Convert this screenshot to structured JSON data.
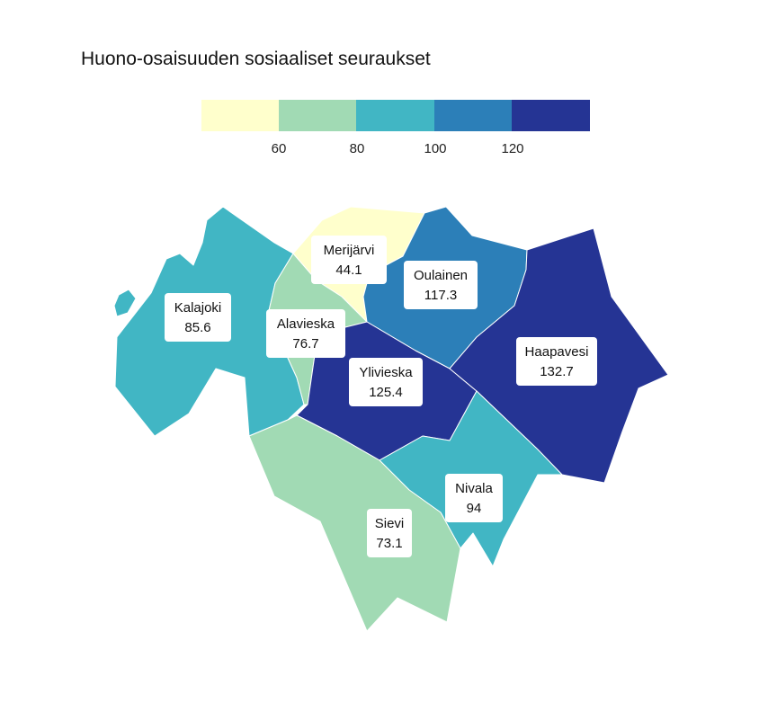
{
  "title": "Huono-osaisuuden sosiaaliset seuraukset",
  "legend": {
    "bins": [
      {
        "color": "#ffffcc"
      },
      {
        "color": "#a1dab4"
      },
      {
        "color": "#41b6c4"
      },
      {
        "color": "#2c7fb8"
      },
      {
        "color": "#253494"
      }
    ],
    "ticks": [
      "60",
      "80",
      "100",
      "120"
    ]
  },
  "regions": [
    {
      "name": "Merijärvi",
      "value": "44.1",
      "color": "#ffffcc"
    },
    {
      "name": "Oulainen",
      "value": "117.3",
      "color": "#2c7fb8"
    },
    {
      "name": "Kalajoki",
      "value": "85.6",
      "color": "#41b6c4"
    },
    {
      "name": "Alavieska",
      "value": "76.7",
      "color": "#a1dab4"
    },
    {
      "name": "Ylivieska",
      "value": "125.4",
      "color": "#253494"
    },
    {
      "name": "Haapavesi",
      "value": "132.7",
      "color": "#253494"
    },
    {
      "name": "Nivala",
      "value": "94",
      "color": "#41b6c4"
    },
    {
      "name": "Sievi",
      "value": "73.1",
      "color": "#a1dab4"
    }
  ]
}
